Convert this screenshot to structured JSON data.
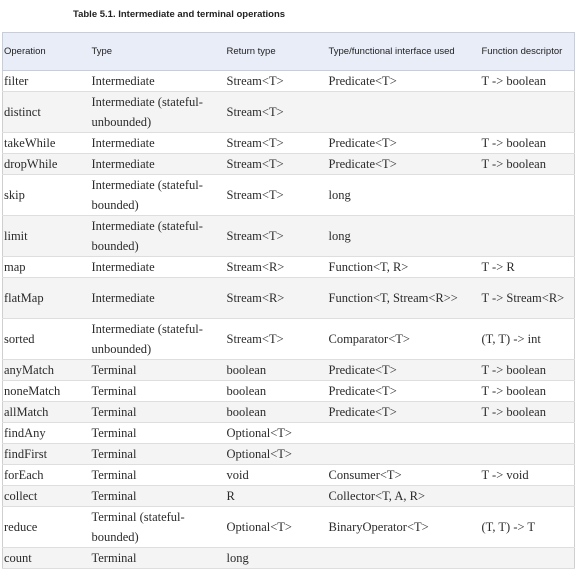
{
  "caption": "Table 5.1. Intermediate and terminal operations",
  "headers": [
    "Operation",
    "Type",
    "Return type",
    "Type/functional interface used",
    "Function descriptor"
  ],
  "rows": [
    {
      "op": "filter",
      "type": "Intermediate",
      "ret": "Stream<T>",
      "iface": "Predicate<T>",
      "desc": "T -> boolean",
      "tall": false
    },
    {
      "op": "distinct",
      "type": "Intermediate (stateful-unbounded)",
      "ret": "Stream<T>",
      "iface": "",
      "desc": "",
      "tall": true
    },
    {
      "op": "takeWhile",
      "type": "Intermediate",
      "ret": "Stream<T>",
      "iface": "Predicate<T>",
      "desc": "T -> boolean",
      "tall": false
    },
    {
      "op": "dropWhile",
      "type": "Intermediate",
      "ret": "Stream<T>",
      "iface": "Predicate<T>",
      "desc": "T -> boolean",
      "tall": false
    },
    {
      "op": "skip",
      "type": "Intermediate (stateful-bounded)",
      "ret": "Stream<T>",
      "iface": "long",
      "desc": "",
      "tall": true
    },
    {
      "op": "limit",
      "type": "Intermediate (stateful-bounded)",
      "ret": "Stream<T>",
      "iface": "long",
      "desc": "",
      "tall": true
    },
    {
      "op": "map",
      "type": "Intermediate",
      "ret": "Stream<R>",
      "iface": "Function<T, R>",
      "desc": "T -> R",
      "tall": false
    },
    {
      "op": "flatMap",
      "type": "Intermediate",
      "ret": "Stream<R>",
      "iface": "Function<T, Stream<R>>",
      "desc": "T -> Stream<R>",
      "tall": true
    },
    {
      "op": "sorted",
      "type": "Intermediate (stateful-unbounded)",
      "ret": "Stream<T>",
      "iface": "Comparator<T>",
      "desc": "(T, T) -> int",
      "tall": true
    },
    {
      "op": "anyMatch",
      "type": "Terminal",
      "ret": "boolean",
      "iface": "Predicate<T>",
      "desc": "T -> boolean",
      "tall": false
    },
    {
      "op": "noneMatch",
      "type": "Terminal",
      "ret": "boolean",
      "iface": "Predicate<T>",
      "desc": "T -> boolean",
      "tall": false
    },
    {
      "op": "allMatch",
      "type": "Terminal",
      "ret": "boolean",
      "iface": "Predicate<T>",
      "desc": "T -> boolean",
      "tall": false
    },
    {
      "op": "findAny",
      "type": "Terminal",
      "ret": "Optional<T>",
      "iface": "",
      "desc": "",
      "tall": false
    },
    {
      "op": "findFirst",
      "type": "Terminal",
      "ret": "Optional<T>",
      "iface": "",
      "desc": "",
      "tall": false
    },
    {
      "op": "forEach",
      "type": "Terminal",
      "ret": "void",
      "iface": "Consumer<T>",
      "desc": "T -> void",
      "tall": false
    },
    {
      "op": "collect",
      "type": "Terminal",
      "ret": "R",
      "iface": "Collector<T, A, R>",
      "desc": "",
      "tall": false
    },
    {
      "op": "reduce",
      "type": "Terminal (stateful-bounded)",
      "ret": "Optional<T>",
      "iface": "BinaryOperator<T>",
      "desc": "(T, T) -> T",
      "tall": true
    },
    {
      "op": "count",
      "type": "Terminal",
      "ret": "long",
      "iface": "",
      "desc": "",
      "tall": false
    }
  ]
}
